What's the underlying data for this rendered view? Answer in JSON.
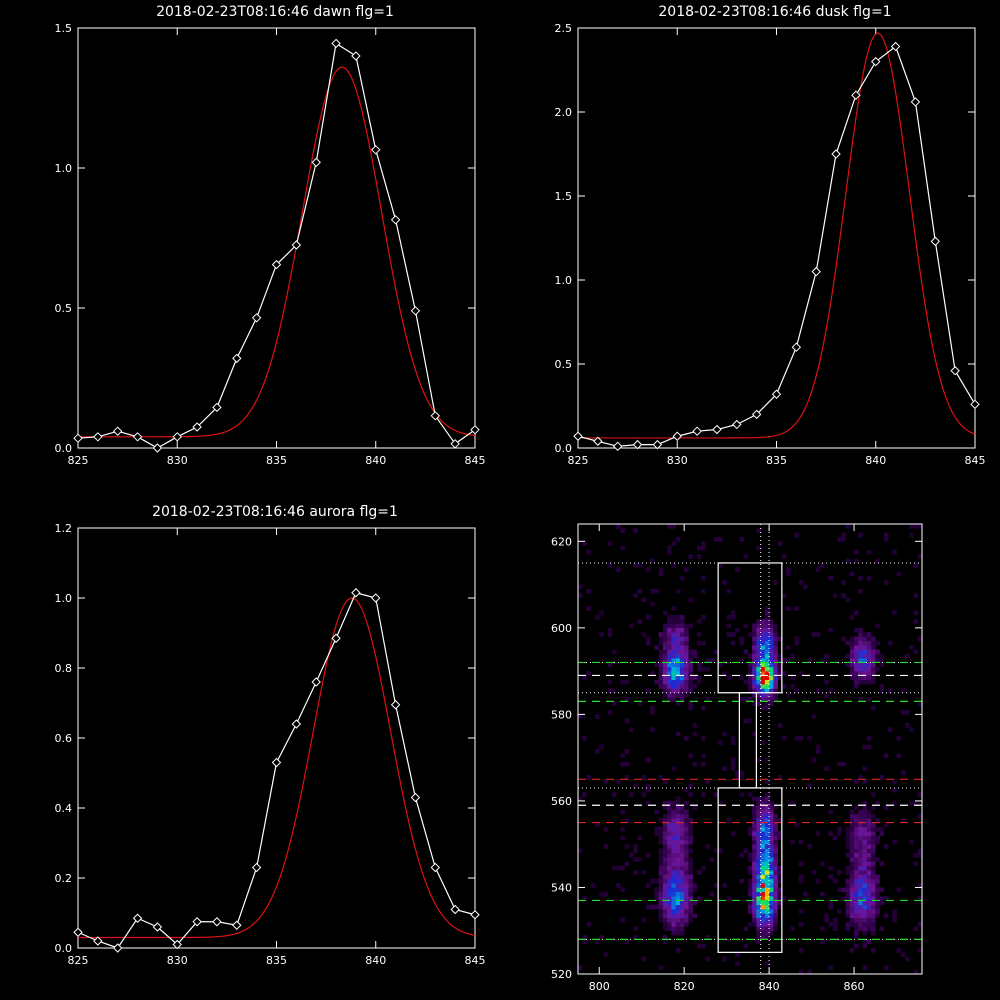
{
  "chart_data": [
    {
      "type": "line",
      "title": "2018-02-23T08:16:46 dawn flg=1",
      "xlim": [
        825,
        845
      ],
      "ylim": [
        0,
        1.5
      ],
      "xticks": [
        825,
        830,
        835,
        840,
        845
      ],
      "yticks": [
        0.0,
        0.5,
        1.0,
        1.5
      ],
      "ytick_format": 1,
      "series": [
        {
          "marker": "diamond",
          "color": "#ffffff",
          "x": [
            825,
            826,
            827,
            828,
            829,
            830,
            831,
            832,
            833,
            834,
            835,
            836,
            837,
            838,
            839,
            840,
            841,
            842,
            843,
            844,
            845
          ],
          "values": [
            0.035,
            0.04,
            0.06,
            0.04,
            0.0,
            0.04,
            0.075,
            0.145,
            0.32,
            0.465,
            0.655,
            0.725,
            1.02,
            1.445,
            1.4,
            1.065,
            0.815,
            0.49,
            0.115,
            0.015,
            0.065
          ]
        },
        {
          "fit": "gaussian",
          "color": "#dd1111",
          "amplitude": 1.32,
          "center": 838.3,
          "sigma": 2.0,
          "baseline": 0.04
        }
      ]
    },
    {
      "type": "line",
      "title": "2018-02-23T08:16:46 dusk flg=1",
      "xlim": [
        825,
        845
      ],
      "ylim": [
        0,
        2.5
      ],
      "xticks": [
        825,
        830,
        835,
        840,
        845
      ],
      "yticks": [
        0.0,
        0.5,
        1.0,
        1.5,
        2.0,
        2.5
      ],
      "ytick_format": 1,
      "series": [
        {
          "marker": "diamond",
          "color": "#ffffff",
          "x": [
            825,
            826,
            827,
            828,
            829,
            830,
            831,
            832,
            833,
            834,
            835,
            836,
            837,
            838,
            839,
            840,
            841,
            842,
            843,
            844,
            845
          ],
          "values": [
            0.07,
            0.04,
            0.01,
            0.02,
            0.02,
            0.07,
            0.1,
            0.11,
            0.14,
            0.2,
            0.32,
            0.6,
            1.05,
            1.75,
            2.1,
            2.3,
            2.39,
            2.06,
            1.23,
            0.46,
            0.26
          ]
        },
        {
          "fit": "gaussian",
          "color": "#dd1111",
          "amplitude": 2.41,
          "center": 840.1,
          "sigma": 1.6,
          "baseline": 0.06
        }
      ]
    },
    {
      "type": "line",
      "title": "2018-02-23T08:16:46 aurora flg=1",
      "xlim": [
        825,
        845
      ],
      "ylim": [
        0,
        1.2
      ],
      "xticks": [
        825,
        830,
        835,
        840,
        845
      ],
      "yticks": [
        0.0,
        0.2,
        0.4,
        0.6,
        0.8,
        1.0,
        1.2
      ],
      "ytick_format": 1,
      "series": [
        {
          "marker": "diamond",
          "color": "#ffffff",
          "x": [
            825,
            826,
            827,
            828,
            829,
            830,
            831,
            832,
            833,
            834,
            835,
            836,
            837,
            838,
            839,
            840,
            841,
            842,
            843,
            844,
            845
          ],
          "values": [
            0.045,
            0.02,
            0.0,
            0.085,
            0.06,
            0.01,
            0.075,
            0.075,
            0.065,
            0.23,
            0.53,
            0.64,
            0.76,
            0.885,
            1.015,
            1.0,
            0.695,
            0.43,
            0.23,
            0.11,
            0.095
          ]
        },
        {
          "fit": "gaussian",
          "color": "#dd1111",
          "amplitude": 0.97,
          "center": 838.8,
          "sigma": 1.95,
          "baseline": 0.03
        }
      ]
    },
    {
      "type": "heatmap",
      "title": "",
      "xlim": [
        795,
        876
      ],
      "ylim": [
        520,
        624
      ],
      "xticks": [
        800,
        820,
        840,
        860
      ],
      "yticks": [
        520,
        540,
        560,
        580,
        600,
        620
      ],
      "ytick_format": 0,
      "colormap": "rainbow",
      "blobs": [
        {
          "x": 839,
          "y": 589,
          "sx": 1.6,
          "sy": 3.0,
          "a": 1.0
        },
        {
          "x": 839,
          "y": 597,
          "sx": 1.6,
          "sy": 3.0,
          "a": 0.45
        },
        {
          "x": 818,
          "y": 590,
          "sx": 2.0,
          "sy": 3.2,
          "a": 0.62
        },
        {
          "x": 818,
          "y": 598,
          "sx": 2.0,
          "sy": 2.5,
          "a": 0.25
        },
        {
          "x": 862,
          "y": 593,
          "sx": 2.0,
          "sy": 3.2,
          "a": 0.4
        },
        {
          "x": 839,
          "y": 537,
          "sx": 1.6,
          "sy": 4.0,
          "a": 0.78
        },
        {
          "x": 839,
          "y": 545,
          "sx": 1.6,
          "sy": 4.0,
          "a": 0.55
        },
        {
          "x": 839,
          "y": 554,
          "sx": 1.6,
          "sy": 3.5,
          "a": 0.45
        },
        {
          "x": 818,
          "y": 538,
          "sx": 2.2,
          "sy": 4.5,
          "a": 0.5
        },
        {
          "x": 818,
          "y": 552,
          "sx": 2.2,
          "sy": 4.5,
          "a": 0.28
        },
        {
          "x": 862,
          "y": 538,
          "sx": 2.2,
          "sy": 4.5,
          "a": 0.4
        },
        {
          "x": 862,
          "y": 552,
          "sx": 2.2,
          "sy": 4.5,
          "a": 0.22
        }
      ],
      "overlays": {
        "white_dotted_h": [
          615,
          592,
          585,
          563,
          528
        ],
        "white_dotted_v": [
          838,
          840
        ],
        "white_dashed_h": [
          589,
          559
        ],
        "green_dashed_h": [
          592,
          583,
          537,
          528
        ],
        "red_dashed_h": [
          565,
          555
        ],
        "white_boxes": [
          {
            "x0": 828,
            "x1": 843,
            "y0": 585,
            "y1": 615
          },
          {
            "x0": 828,
            "x1": 843,
            "y0": 525,
            "y1": 563
          },
          {
            "x0": 833,
            "x1": 837,
            "y0": 563,
            "y1": 585
          }
        ]
      }
    }
  ]
}
